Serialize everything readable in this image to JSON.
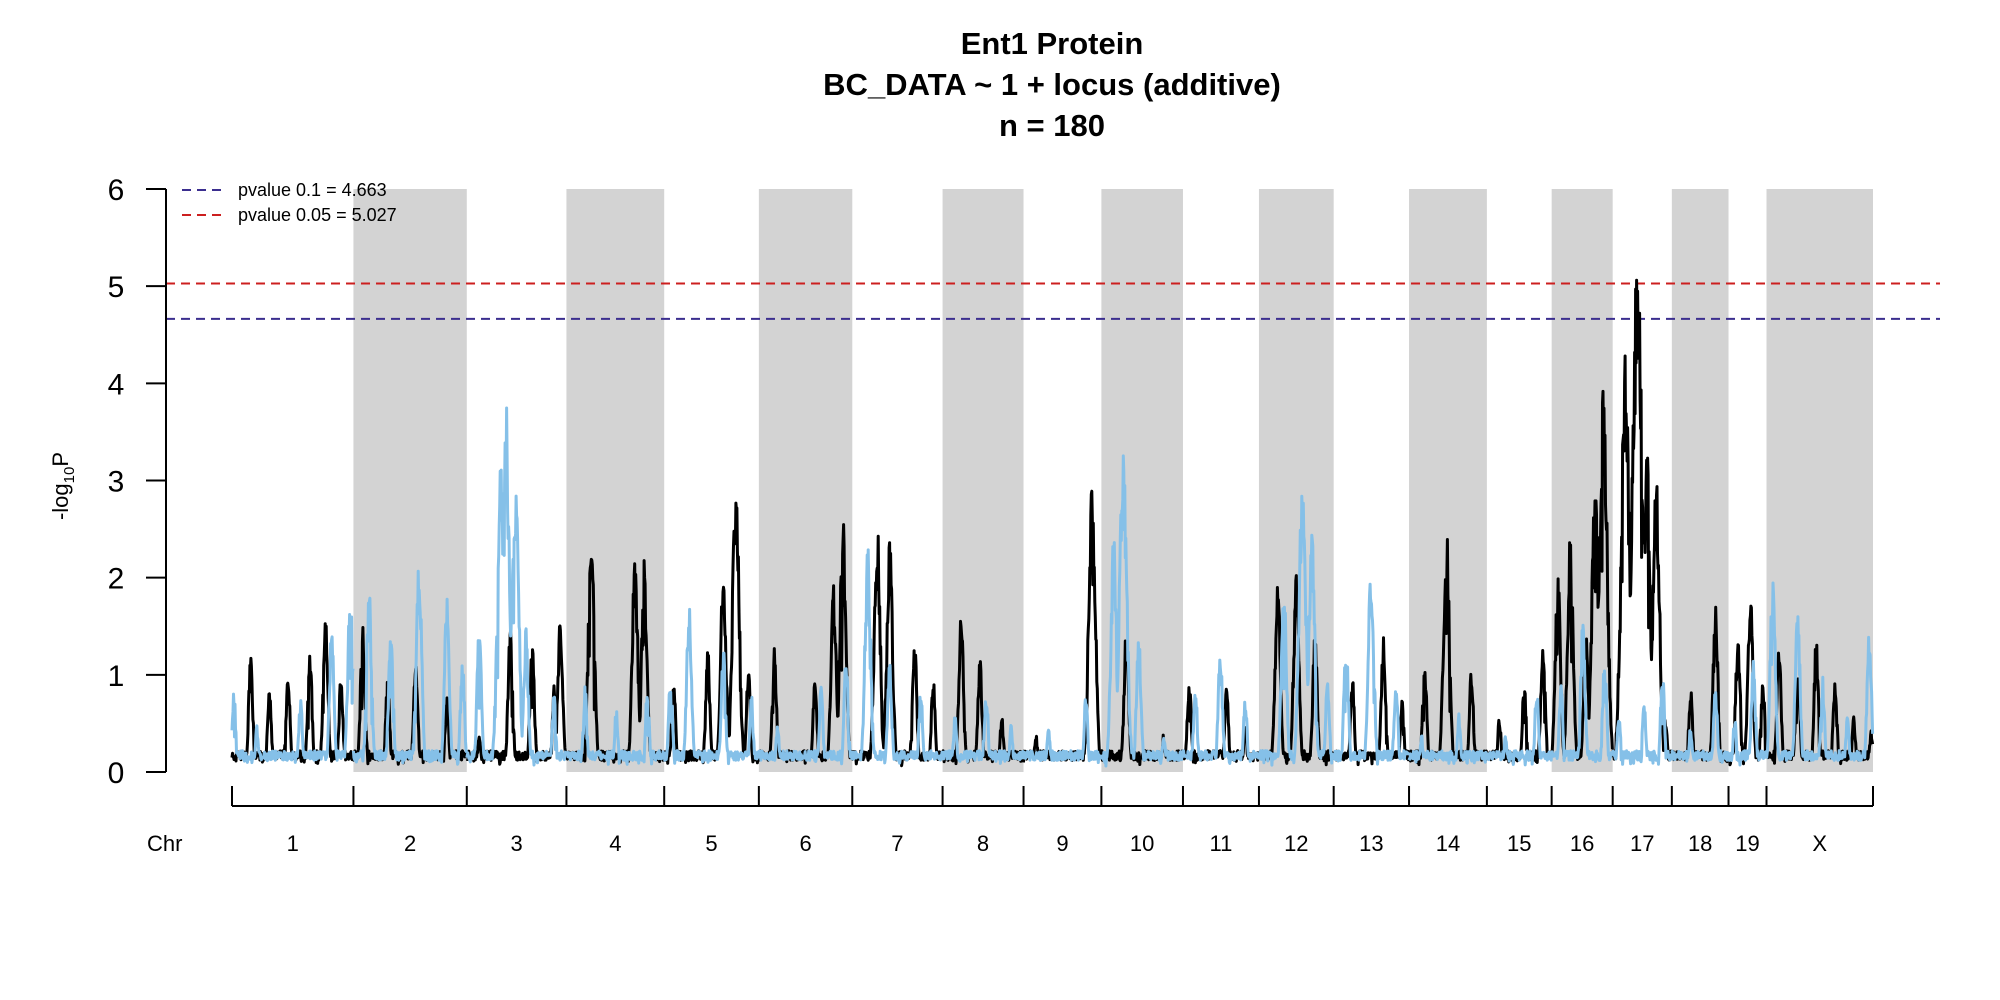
{
  "chart_data": {
    "type": "line",
    "title_lines": [
      "Ent1 Protein",
      "BC_DATA ~ 1 + locus (additive)",
      "n = 180"
    ],
    "ylabel_base": "-log",
    "ylabel_sub": "10",
    "ylabel_tail": "P",
    "ylim": [
      0,
      6
    ],
    "yticks": [
      0,
      1,
      2,
      3,
      4,
      5,
      6
    ],
    "chr_axis_label": "Chr",
    "chromosomes": [
      {
        "name": "1",
        "length": 195
      },
      {
        "name": "2",
        "length": 182
      },
      {
        "name": "3",
        "length": 160
      },
      {
        "name": "4",
        "length": 157
      },
      {
        "name": "5",
        "length": 152
      },
      {
        "name": "6",
        "length": 150
      },
      {
        "name": "7",
        "length": 145
      },
      {
        "name": "8",
        "length": 130
      },
      {
        "name": "9",
        "length": 125
      },
      {
        "name": "10",
        "length": 131
      },
      {
        "name": "11",
        "length": 122
      },
      {
        "name": "12",
        "length": 120
      },
      {
        "name": "13",
        "length": 121
      },
      {
        "name": "14",
        "length": 125
      },
      {
        "name": "15",
        "length": 104
      },
      {
        "name": "16",
        "length": 98
      },
      {
        "name": "17",
        "length": 95
      },
      {
        "name": "18",
        "length": 91
      },
      {
        "name": "19",
        "length": 61
      },
      {
        "name": "X",
        "length": 171
      }
    ],
    "thresholds": [
      {
        "label": "pvalue 0.1 = 4.663",
        "value": 4.663,
        "color": "#3b2e8f"
      },
      {
        "label": "pvalue 0.05 = 5.027",
        "value": 5.027,
        "color": "#cc1f1f"
      }
    ],
    "legend_position": "top-left",
    "series": [
      {
        "color": "#000000",
        "peaks": [
          [
            0,
            10,
            0.2
          ],
          [
            0,
            30,
            1.2
          ],
          [
            0,
            60,
            0.9
          ],
          [
            0,
            90,
            1.1
          ],
          [
            0,
            125,
            1.3
          ],
          [
            0,
            150,
            1.65
          ],
          [
            0,
            175,
            1.0
          ],
          [
            1,
            15,
            1.5
          ],
          [
            1,
            55,
            1.0
          ],
          [
            1,
            100,
            1.2
          ],
          [
            1,
            150,
            0.8
          ],
          [
            2,
            20,
            0.4
          ],
          [
            2,
            70,
            1.5
          ],
          [
            2,
            105,
            1.4
          ],
          [
            2,
            140,
            0.9
          ],
          [
            2,
            150,
            1.7
          ],
          [
            3,
            40,
            2.55
          ],
          [
            3,
            110,
            2.25
          ],
          [
            3,
            125,
            2.2
          ],
          [
            4,
            15,
            1.0
          ],
          [
            4,
            70,
            1.3
          ],
          [
            4,
            95,
            2.2
          ],
          [
            4,
            115,
            3.07
          ],
          [
            4,
            135,
            1.1
          ],
          [
            5,
            25,
            1.3
          ],
          [
            5,
            90,
            1.0
          ],
          [
            5,
            120,
            2.0
          ],
          [
            5,
            135,
            2.65
          ],
          [
            6,
            40,
            2.6
          ],
          [
            6,
            60,
            2.4
          ],
          [
            6,
            100,
            1.4
          ],
          [
            6,
            130,
            1.0
          ],
          [
            7,
            30,
            1.7
          ],
          [
            7,
            60,
            1.2
          ],
          [
            7,
            95,
            0.6
          ],
          [
            8,
            20,
            0.4
          ],
          [
            8,
            110,
            3.05
          ],
          [
            9,
            40,
            1.5
          ],
          [
            9,
            100,
            0.4
          ],
          [
            10,
            10,
            1.05
          ],
          [
            10,
            70,
            0.9
          ],
          [
            10,
            100,
            0.5
          ],
          [
            11,
            30,
            2.0
          ],
          [
            11,
            60,
            2.1
          ],
          [
            11,
            90,
            1.5
          ],
          [
            12,
            30,
            1.0
          ],
          [
            12,
            80,
            1.4
          ],
          [
            12,
            110,
            0.8
          ],
          [
            13,
            25,
            1.2
          ],
          [
            13,
            60,
            2.55
          ],
          [
            13,
            100,
            1.1
          ],
          [
            14,
            20,
            0.6
          ],
          [
            14,
            60,
            1.0
          ],
          [
            14,
            90,
            1.4
          ],
          [
            15,
            10,
            2.1
          ],
          [
            15,
            30,
            2.45
          ],
          [
            15,
            55,
            1.5
          ],
          [
            15,
            70,
            3.12
          ],
          [
            15,
            83,
            3.95
          ],
          [
            16,
            20,
            4.3
          ],
          [
            16,
            40,
            5.55
          ],
          [
            16,
            55,
            3.3
          ],
          [
            16,
            70,
            3.1
          ],
          [
            16,
            85,
            0.6
          ],
          [
            17,
            30,
            0.9
          ],
          [
            17,
            70,
            1.75
          ],
          [
            18,
            15,
            1.5
          ],
          [
            18,
            35,
            1.9
          ],
          [
            18,
            55,
            1.0
          ],
          [
            19,
            20,
            1.3
          ],
          [
            19,
            50,
            1.2
          ],
          [
            19,
            80,
            1.4
          ],
          [
            19,
            110,
            1.0
          ],
          [
            19,
            140,
            0.6
          ],
          [
            19,
            168,
            0.45
          ]
        ]
      },
      {
        "color": "#85c0e8",
        "peaks": [
          [
            0,
            3,
            0.9
          ],
          [
            0,
            40,
            0.5
          ],
          [
            0,
            110,
            0.8
          ],
          [
            0,
            160,
            1.5
          ],
          [
            0,
            190,
            1.95
          ],
          [
            1,
            25,
            1.9
          ],
          [
            1,
            60,
            1.5
          ],
          [
            1,
            105,
            2.25
          ],
          [
            1,
            150,
            1.8
          ],
          [
            1,
            175,
            1.2
          ],
          [
            2,
            20,
            1.5
          ],
          [
            2,
            55,
            3.4
          ],
          [
            2,
            62,
            3.98
          ],
          [
            2,
            78,
            3.2
          ],
          [
            2,
            95,
            1.5
          ],
          [
            2,
            140,
            0.8
          ],
          [
            3,
            30,
            0.9
          ],
          [
            3,
            80,
            0.7
          ],
          [
            3,
            130,
            0.9
          ],
          [
            4,
            10,
            1.0
          ],
          [
            4,
            40,
            1.8
          ],
          [
            4,
            95,
            1.3
          ],
          [
            4,
            140,
            0.8
          ],
          [
            5,
            30,
            0.5
          ],
          [
            5,
            100,
            0.9
          ],
          [
            5,
            140,
            1.2
          ],
          [
            6,
            25,
            2.35
          ],
          [
            6,
            60,
            1.2
          ],
          [
            6,
            110,
            0.9
          ],
          [
            7,
            20,
            0.6
          ],
          [
            7,
            70,
            0.9
          ],
          [
            7,
            110,
            0.5
          ],
          [
            8,
            40,
            0.5
          ],
          [
            8,
            100,
            0.8
          ],
          [
            9,
            20,
            2.5
          ],
          [
            9,
            35,
            3.45
          ],
          [
            9,
            60,
            1.5
          ],
          [
            9,
            100,
            0.4
          ],
          [
            10,
            20,
            0.9
          ],
          [
            10,
            60,
            1.3
          ],
          [
            10,
            100,
            0.8
          ],
          [
            11,
            40,
            2.0
          ],
          [
            11,
            70,
            3.15
          ],
          [
            11,
            85,
            2.5
          ],
          [
            11,
            110,
            1.0
          ],
          [
            12,
            20,
            1.4
          ],
          [
            12,
            60,
            2.25
          ],
          [
            12,
            100,
            1.0
          ],
          [
            13,
            20,
            0.4
          ],
          [
            13,
            80,
            0.6
          ],
          [
            14,
            30,
            0.4
          ],
          [
            14,
            80,
            0.9
          ],
          [
            15,
            15,
            0.9
          ],
          [
            15,
            50,
            1.6
          ],
          [
            15,
            85,
            1.2
          ],
          [
            16,
            10,
            0.6
          ],
          [
            16,
            50,
            0.8
          ],
          [
            16,
            80,
            1.1
          ],
          [
            17,
            30,
            0.5
          ],
          [
            17,
            70,
            0.9
          ],
          [
            18,
            10,
            0.6
          ],
          [
            18,
            40,
            1.2
          ],
          [
            19,
            10,
            2.0
          ],
          [
            19,
            50,
            1.7
          ],
          [
            19,
            90,
            1.0
          ],
          [
            19,
            130,
            0.6
          ],
          [
            19,
            165,
            1.45
          ]
        ]
      }
    ]
  }
}
